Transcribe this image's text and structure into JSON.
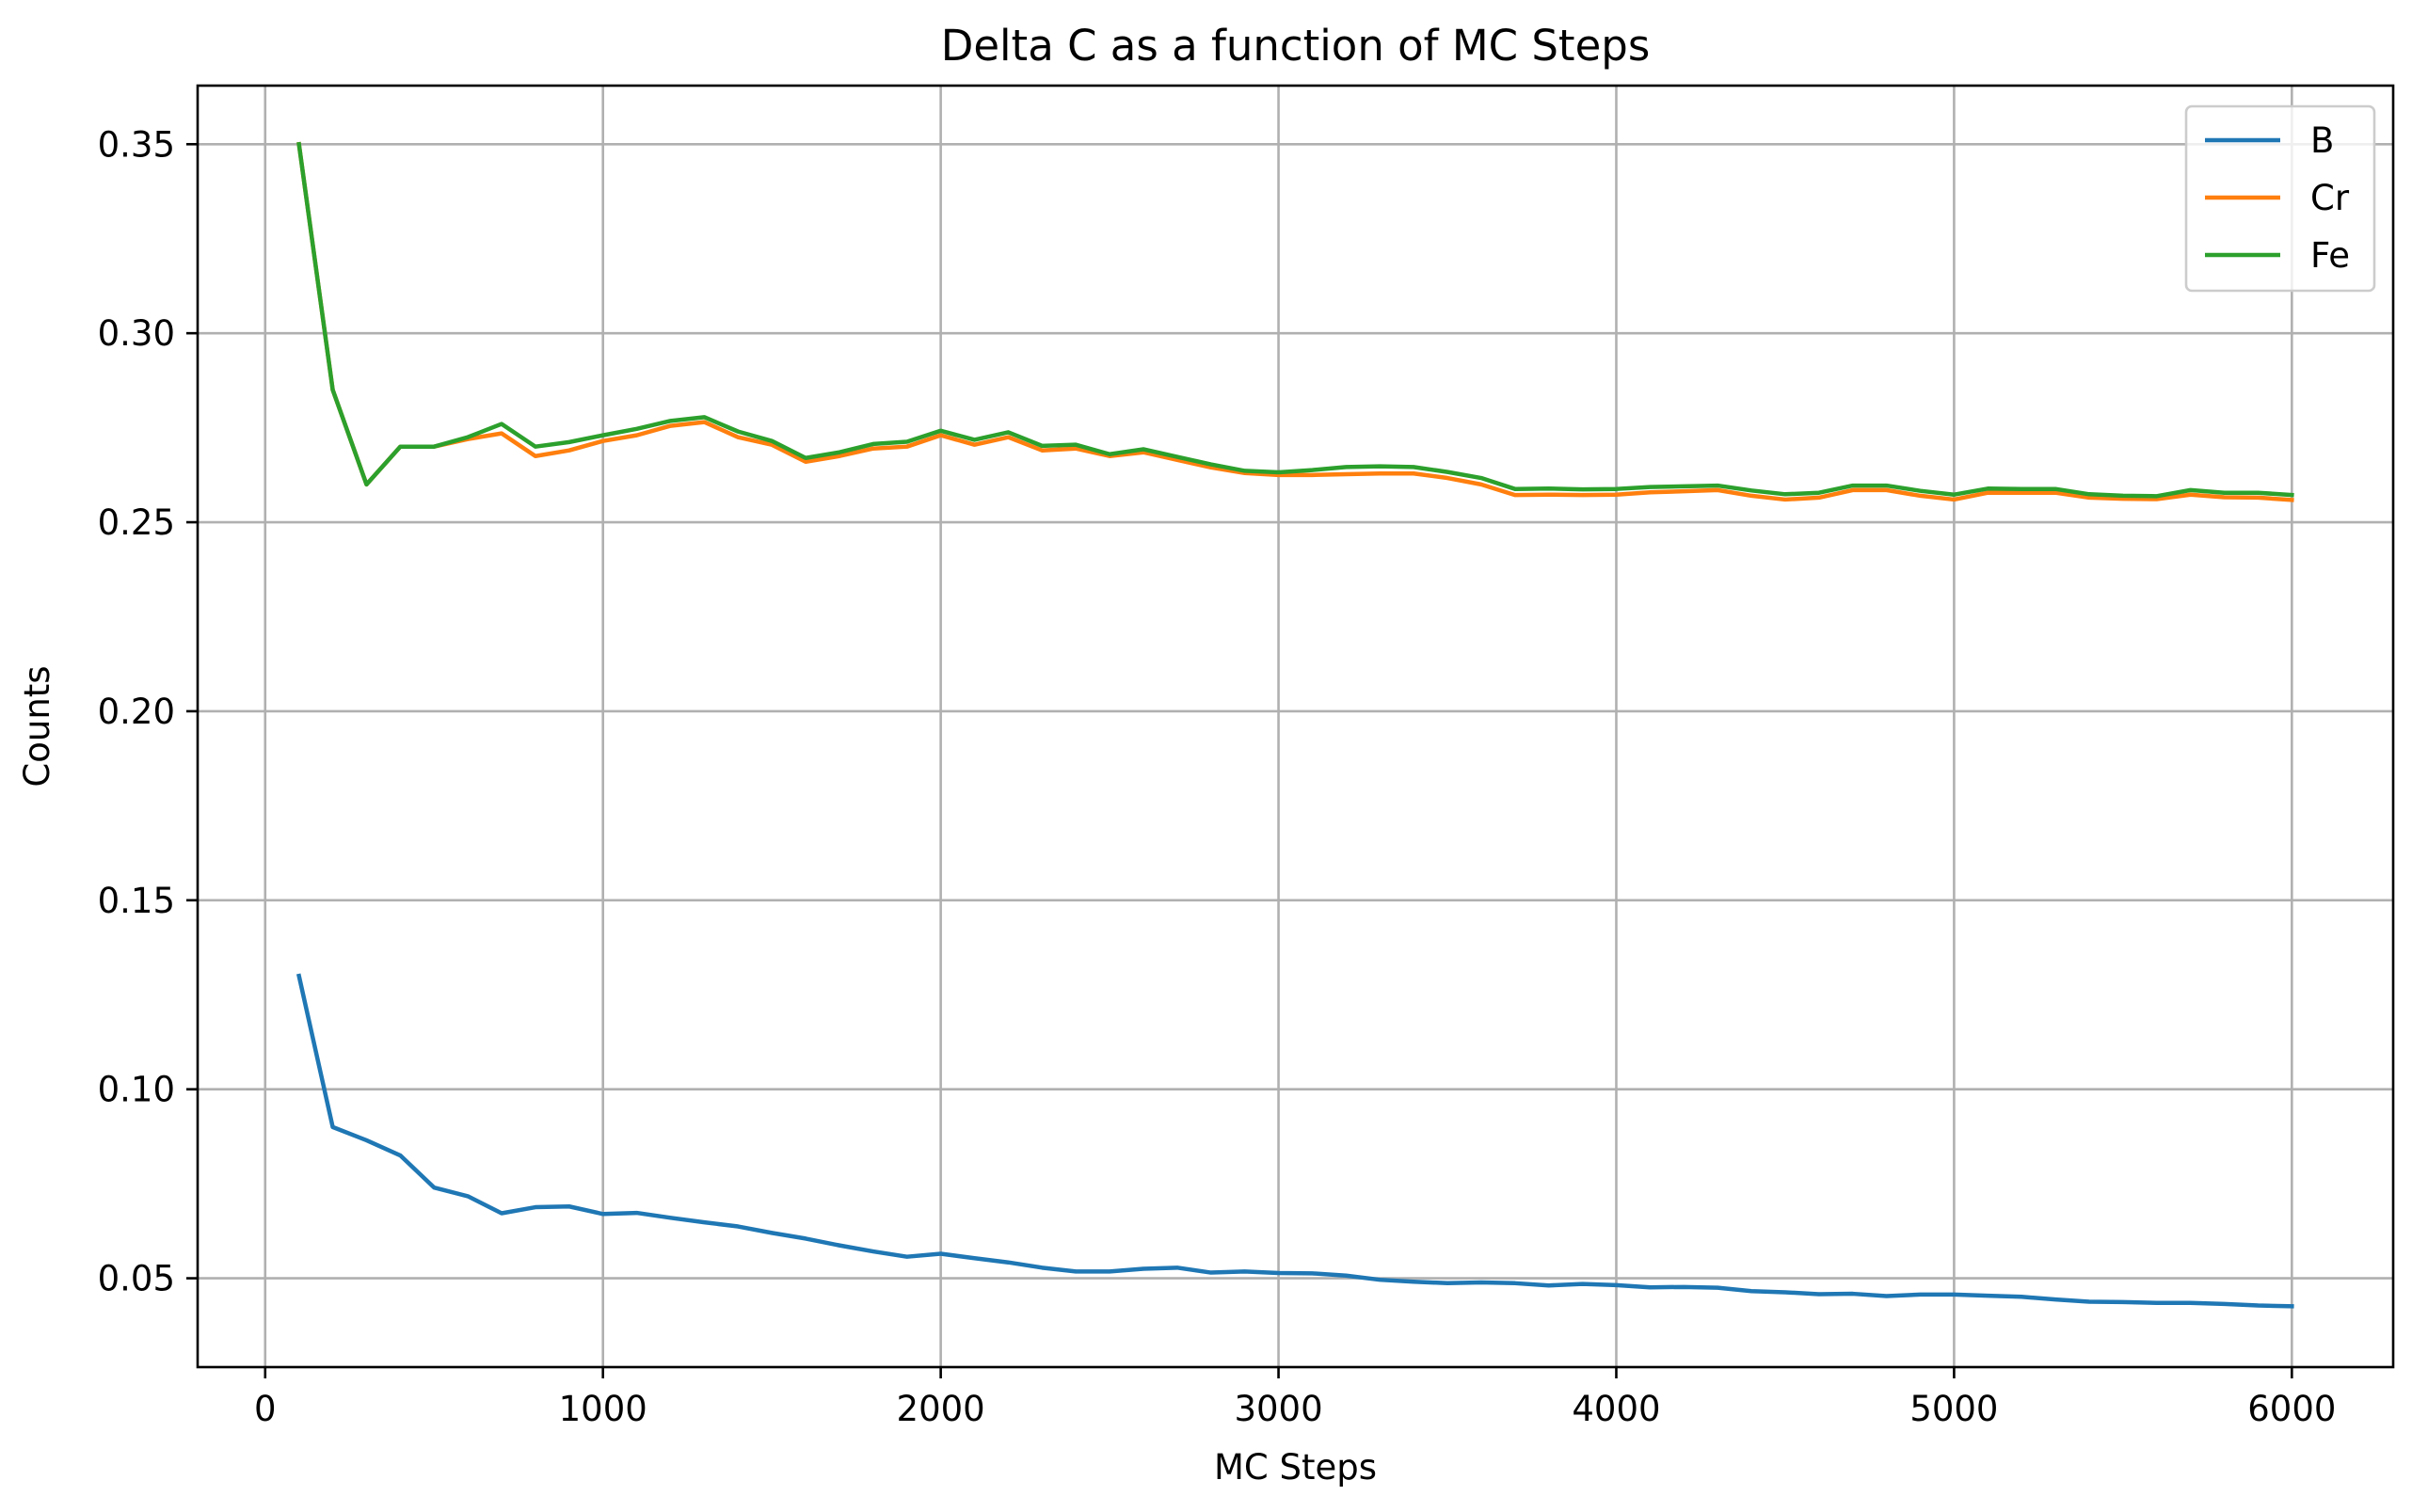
{
  "chart_data": {
    "type": "line",
    "title": "Delta C as a function of MC Steps",
    "xlabel": "MC Steps",
    "ylabel": "Counts",
    "xlim": [
      -200,
      6300
    ],
    "ylim": [
      0.0265,
      0.3655
    ],
    "xticks": [
      0,
      1000,
      2000,
      3000,
      4000,
      5000,
      6000
    ],
    "xtick_labels": [
      "0",
      "1000",
      "2000",
      "3000",
      "4000",
      "5000",
      "6000"
    ],
    "yticks": [
      0.05,
      0.1,
      0.15,
      0.2,
      0.25,
      0.3,
      0.35
    ],
    "ytick_labels": [
      "0.05",
      "0.10",
      "0.15",
      "0.20",
      "0.25",
      "0.30",
      "0.35"
    ],
    "grid": true,
    "legend_position": "top-right",
    "x": [
      100,
      200,
      300,
      400,
      500,
      600,
      700,
      800,
      900,
      1000,
      1100,
      1200,
      1300,
      1400,
      1500,
      1600,
      1700,
      1800,
      1900,
      2000,
      2100,
      2200,
      2300,
      2400,
      2500,
      2600,
      2700,
      2800,
      2900,
      3000,
      3100,
      3200,
      3300,
      3400,
      3500,
      3600,
      3700,
      3800,
      3900,
      4000,
      4100,
      4200,
      4300,
      4400,
      4500,
      4600,
      4700,
      4800,
      4900,
      5000,
      5100,
      5200,
      5300,
      5400,
      5500,
      5600,
      5700,
      5800,
      5900,
      6000
    ],
    "series": [
      {
        "name": "B",
        "color": "#1f77b4",
        "values": [
          0.13,
          0.09,
          0.0865,
          0.0825,
          0.074,
          0.0717,
          0.0672,
          0.0688,
          0.069,
          0.067,
          0.0673,
          0.066,
          0.0648,
          0.0637,
          0.062,
          0.0605,
          0.0587,
          0.0571,
          0.0557,
          0.0565,
          0.0553,
          0.0542,
          0.0528,
          0.0518,
          0.0518,
          0.0525,
          0.0528,
          0.0515,
          0.0518,
          0.0514,
          0.0513,
          0.0507,
          0.0496,
          0.0491,
          0.0487,
          0.0489,
          0.0487,
          0.0481,
          0.0485,
          0.0482,
          0.0476,
          0.0477,
          0.0475,
          0.0466,
          0.0463,
          0.0458,
          0.0459,
          0.0453,
          0.0457,
          0.0457,
          0.0454,
          0.0451,
          0.0444,
          0.0438,
          0.0437,
          0.0435,
          0.0435,
          0.0432,
          0.0428,
          0.0426
        ]
      },
      {
        "name": "Cr",
        "color": "#ff7f0e",
        "values": [
          0.35,
          0.285,
          0.26,
          0.27,
          0.27,
          0.272,
          0.2735,
          0.2675,
          0.269,
          0.2715,
          0.273,
          0.2755,
          0.2765,
          0.2725,
          0.2705,
          0.266,
          0.2675,
          0.2695,
          0.27,
          0.273,
          0.2705,
          0.2725,
          0.269,
          0.2695,
          0.2675,
          0.2685,
          0.2665,
          0.2645,
          0.263,
          0.2625,
          0.2625,
          0.2627,
          0.2629,
          0.2629,
          0.2617,
          0.26,
          0.2572,
          0.2573,
          0.2572,
          0.2573,
          0.2579,
          0.2582,
          0.2585,
          0.257,
          0.256,
          0.2565,
          0.2585,
          0.2585,
          0.257,
          0.256,
          0.2578,
          0.2578,
          0.2578,
          0.2565,
          0.2562,
          0.2561,
          0.2573,
          0.2566,
          0.2565,
          0.2559
        ]
      },
      {
        "name": "Fe",
        "color": "#2ca02c",
        "values": [
          0.35,
          0.285,
          0.26,
          0.27,
          0.27,
          0.2725,
          0.276,
          0.27,
          0.2712,
          0.273,
          0.2747,
          0.2768,
          0.2778,
          0.274,
          0.2715,
          0.267,
          0.2685,
          0.2707,
          0.2713,
          0.2742,
          0.2718,
          0.2738,
          0.2702,
          0.2705,
          0.268,
          0.2693,
          0.2673,
          0.2653,
          0.2636,
          0.2632,
          0.2638,
          0.2646,
          0.2648,
          0.2646,
          0.2633,
          0.2617,
          0.2588,
          0.2589,
          0.2587,
          0.2588,
          0.2593,
          0.2595,
          0.2597,
          0.2584,
          0.2574,
          0.2578,
          0.2597,
          0.2597,
          0.2583,
          0.2573,
          0.2589,
          0.2588,
          0.2588,
          0.2574,
          0.257,
          0.2569,
          0.2585,
          0.2578,
          0.2578,
          0.2572
        ]
      }
    ]
  }
}
